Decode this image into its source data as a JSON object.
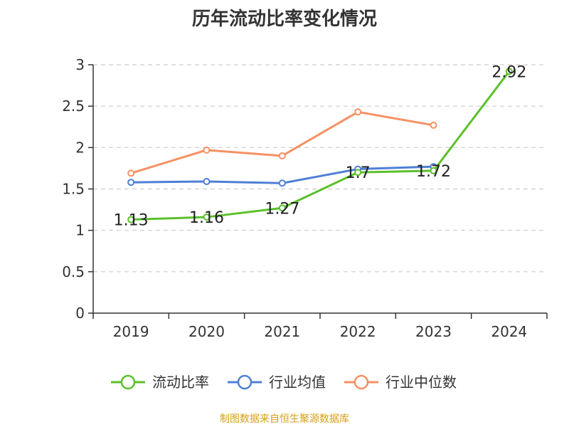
{
  "chart_data": {
    "type": "line",
    "title": "历年流动比率变化情况",
    "categories": [
      "2019",
      "2020",
      "2021",
      "2022",
      "2023",
      "2024"
    ],
    "ylim": [
      0,
      3
    ],
    "yticks": [
      "0",
      "0.5",
      "1",
      "1.5",
      "2",
      "2.5",
      "3"
    ],
    "grid": true,
    "legend_position": "bottom",
    "series": [
      {
        "name": "流动比率",
        "color": "#5bc02c",
        "values": [
          1.13,
          1.16,
          1.27,
          1.7,
          1.72,
          2.92
        ],
        "labels": [
          "1.13",
          "1.16",
          "1.27",
          "1.7",
          "1.72",
          "2.92"
        ],
        "show_labels": true
      },
      {
        "name": "行业均值",
        "color": "#4f7fd6",
        "values": [
          1.58,
          1.59,
          1.57,
          1.74,
          1.77,
          null
        ],
        "show_labels": false
      },
      {
        "name": "行业中位数",
        "color": "#f59164",
        "values": [
          1.69,
          1.97,
          1.9,
          2.43,
          2.27,
          null
        ],
        "show_labels": false
      }
    ]
  },
  "footer": "制图数据来自恒生聚源数据库"
}
